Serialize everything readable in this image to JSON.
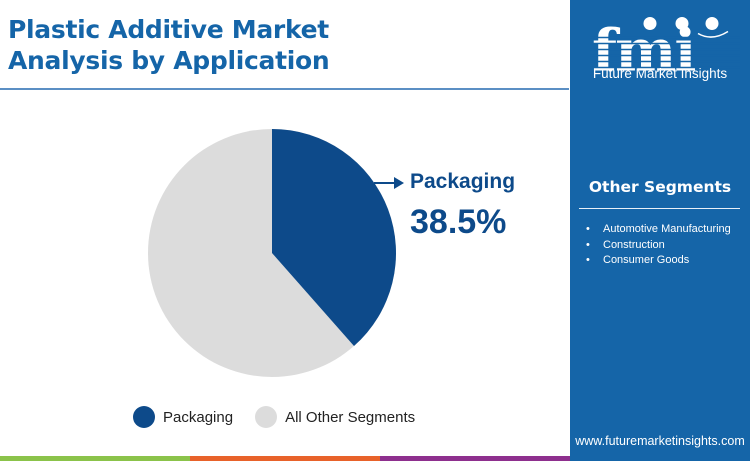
{
  "header": {
    "title_line1": "Plastic Additive Market",
    "title_line2": "Analysis by Application"
  },
  "callout": {
    "label": "Packaging",
    "value": "38.5%"
  },
  "legend": {
    "items": [
      {
        "label": "Packaging",
        "color": "#0d4a8a"
      },
      {
        "label": "All Other Segments",
        "color": "#dcdcdc"
      }
    ]
  },
  "sidebar": {
    "brand": "Future Market Insights",
    "heading": "Other Segments",
    "items": [
      "Automotive Manufacturing",
      "Construction",
      "Consumer Goods"
    ],
    "website": "www.futuremarketinsights.com",
    "background": "#1565a8"
  },
  "bottom_bar_colors": [
    "#8bc34a",
    "#e8622a",
    "#8e2f8e"
  ],
  "chart_data": {
    "type": "pie",
    "title": "Plastic Additive Market Analysis by Application",
    "categories": [
      "Packaging",
      "All Other Segments"
    ],
    "values": [
      38.5,
      61.5
    ],
    "colors": [
      "#0d4a8a",
      "#dcdcdc"
    ],
    "annotations": [
      {
        "label": "Packaging",
        "value": "38.5%"
      }
    ],
    "legend_position": "bottom",
    "start_angle": "12 o'clock, clockwise"
  }
}
